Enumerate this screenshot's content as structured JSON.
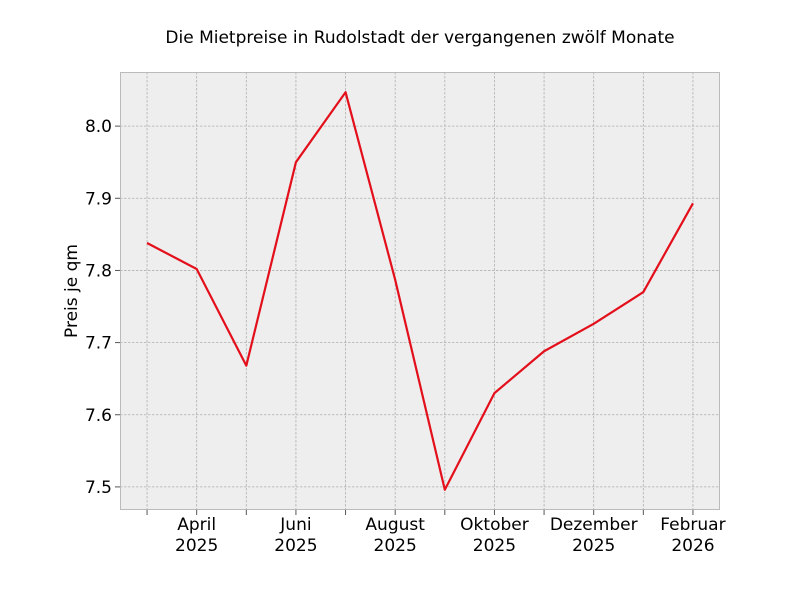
{
  "chart_data": {
    "type": "line",
    "title": "Die Mietpreise in Rudolstadt der vergangenen zwölf Monate",
    "xlabel": "",
    "ylabel": "Preis je qm",
    "x": [
      "2025-03",
      "2025-04",
      "2025-05",
      "2025-06",
      "2025-07",
      "2025-08",
      "2025-09",
      "2025-10",
      "2025-11",
      "2025-12",
      "2026-01",
      "2026-02"
    ],
    "x_tick_labels": [
      {
        "month": "2025-04",
        "line1": "April",
        "line2": "2025"
      },
      {
        "month": "2025-06",
        "line1": "Juni",
        "line2": "2025"
      },
      {
        "month": "2025-08",
        "line1": "August",
        "line2": "2025"
      },
      {
        "month": "2025-10",
        "line1": "Oktober",
        "line2": "2025"
      },
      {
        "month": "2025-12",
        "line1": "Dezember",
        "line2": "2025"
      },
      {
        "month": "2026-02",
        "line1": "Februar",
        "line2": "2026"
      }
    ],
    "series": [
      {
        "values": [
          7.838,
          7.802,
          7.668,
          7.95,
          8.047,
          7.787,
          7.496,
          7.63,
          7.688,
          7.726,
          7.77,
          7.893
        ],
        "color": "#e3101c"
      }
    ],
    "yticks": [
      "7.5",
      "7.6",
      "7.7",
      "7.8",
      "7.9",
      "8.0"
    ],
    "ylim": [
      7.468,
      8.075
    ],
    "xlim": [
      "2025-02-14",
      "2026-02-17"
    ],
    "grid": true,
    "background": "#eeeeee"
  }
}
